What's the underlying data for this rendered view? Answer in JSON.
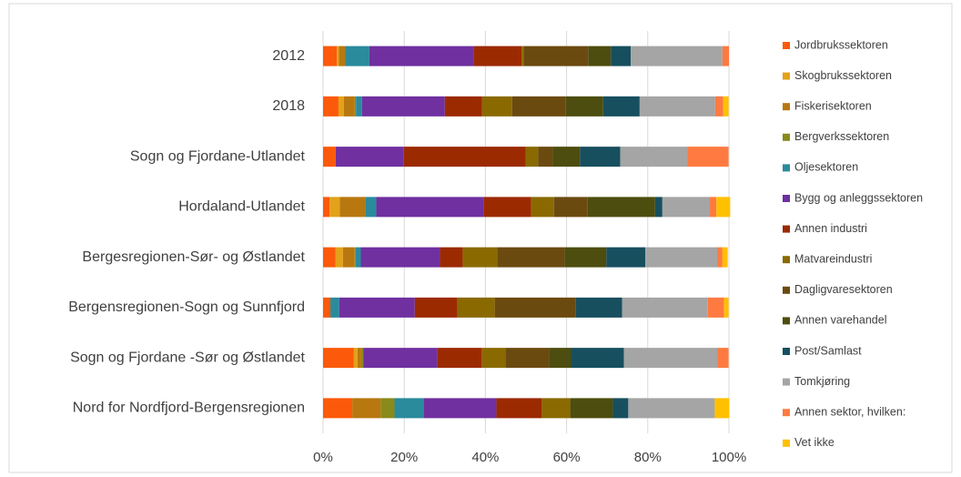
{
  "chart_data": {
    "type": "stacked_barh",
    "categories": [
      "2012",
      "2018",
      "Sogn og Fjordane-Utlandet",
      "Hordaland-Utlandet",
      "Bergesregionen-Sør- og Østlandet",
      "Bergensregionen-Sogn og Sunnfjord",
      "Sogn og Fjordane -Sør og Østlandet",
      "Nord for Nordfjord-Bergensregionen"
    ],
    "series": [
      {
        "name": "Jordbrukssektoren",
        "color": "#fc5a0a",
        "values": [
          3.4,
          3.8,
          3.1,
          1.6,
          3.1,
          1.8,
          7.6,
          7.2
        ]
      },
      {
        "name": "Skogbrukssektoren",
        "color": "#e3a21a",
        "values": [
          0.5,
          1.3,
          0,
          2.5,
          1.8,
          0,
          0.9,
          0
        ]
      },
      {
        "name": "Fiskerisektoren",
        "color": "#b8780f",
        "values": [
          1.5,
          2.7,
          0,
          6.3,
          2.9,
          0,
          0.9,
          7.0
        ]
      },
      {
        "name": "Bergverkssektoren",
        "color": "#8a8a1c",
        "values": [
          0,
          0.3,
          0,
          0,
          0.2,
          0,
          0.5,
          3.4
        ]
      },
      {
        "name": "Oljesektoren",
        "color": "#2a8b9c",
        "values": [
          6.0,
          1.5,
          0,
          2.7,
          1.3,
          2.2,
          0,
          7.2
        ]
      },
      {
        "name": "Bygg og anleggssektoren",
        "color": "#7030a0",
        "values": [
          25.8,
          20.4,
          16.8,
          26.5,
          19.5,
          18.6,
          18.2,
          17.9
        ]
      },
      {
        "name": "Annen industri",
        "color": "#9c2a00",
        "values": [
          11.7,
          9.2,
          30.0,
          11.7,
          5.6,
          10.5,
          11.0,
          11.2
        ]
      },
      {
        "name": "Matvareindustri",
        "color": "#8a6a00",
        "values": [
          0.5,
          7.4,
          3.1,
          5.6,
          8.5,
          9.2,
          5.8,
          7.0
        ]
      },
      {
        "name": "Dagligvaresektoren",
        "color": "#6b4a10",
        "values": [
          15.9,
          13.2,
          3.6,
          8.3,
          16.6,
          20.0,
          10.8,
          0
        ]
      },
      {
        "name": "Annen varehandel",
        "color": "#4d4d0f",
        "values": [
          5.6,
          9.2,
          6.7,
          16.6,
          10.3,
          0,
          5.4,
          10.5
        ]
      },
      {
        "name": "Post/Samlast",
        "color": "#174f5f",
        "values": [
          4.9,
          9.0,
          9.9,
          1.8,
          9.6,
          11.4,
          13.0,
          3.8
        ]
      },
      {
        "name": "Tomkjøring",
        "color": "#a5a5a5",
        "values": [
          22.6,
          18.6,
          16.6,
          11.7,
          17.7,
          21.1,
          23.1,
          21.3
        ]
      },
      {
        "name": "Annen sektor, hvilken:",
        "color": "#ff7a40",
        "values": [
          1.6,
          2.0,
          10.1,
          1.6,
          1.3,
          4.0,
          2.7,
          0
        ]
      },
      {
        "name": "Vet ikke",
        "color": "#ffc000",
        "values": [
          0,
          1.3,
          0,
          3.4,
          1.3,
          1.1,
          0,
          3.6
        ]
      }
    ],
    "xlim": [
      0,
      100
    ],
    "xticks": [
      {
        "value": 0,
        "label": "0%"
      },
      {
        "value": 20,
        "label": "20%"
      },
      {
        "value": 40,
        "label": "40%"
      },
      {
        "value": 60,
        "label": "60%"
      },
      {
        "value": 80,
        "label": "80%"
      },
      {
        "value": 100,
        "label": "100%"
      }
    ],
    "grid": true,
    "legend": "right"
  }
}
